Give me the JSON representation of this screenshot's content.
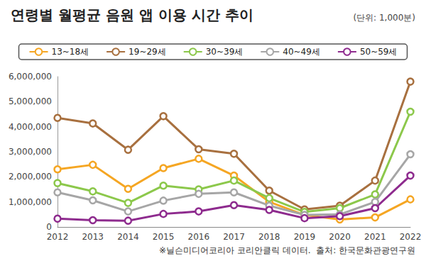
{
  "chart_data": {
    "type": "line",
    "title": "연령별 월평균 음원 앱 이용 시간 추이",
    "subtitle": "(단위: 1,000분)",
    "annotations": [
      "※닐슨미디어코리아 코리안클릭 데이터.  출처: 한국문화관광연구원"
    ],
    "categories": [
      "2012",
      "2013",
      "2014",
      "2015",
      "2016",
      "2017",
      "2018",
      "2019",
      "2020",
      "2021",
      "2022"
    ],
    "series": [
      {
        "name": "13~18세",
        "color": "#f5a623",
        "values": [
          2300000,
          2480000,
          1520000,
          2350000,
          2720000,
          2050000,
          1000000,
          480000,
          300000,
          380000,
          1100000
        ]
      },
      {
        "name": "19~29세",
        "color": "#a8703f",
        "values": [
          4350000,
          4130000,
          3080000,
          4420000,
          3100000,
          2920000,
          1450000,
          700000,
          850000,
          1850000,
          5800000
        ]
      },
      {
        "name": "30~39세",
        "color": "#8cc84b",
        "values": [
          1750000,
          1420000,
          960000,
          1650000,
          1500000,
          1850000,
          1150000,
          600000,
          750000,
          1300000,
          4600000
        ]
      },
      {
        "name": "40~49세",
        "color": "#a6a6a6",
        "values": [
          1380000,
          1060000,
          620000,
          1050000,
          1320000,
          1380000,
          850000,
          480000,
          500000,
          1000000,
          2900000
        ]
      },
      {
        "name": "50~59세",
        "color": "#8e2b8e",
        "values": [
          330000,
          270000,
          250000,
          520000,
          620000,
          870000,
          680000,
          350000,
          430000,
          750000,
          2050000
        ]
      }
    ],
    "ylim": [
      0,
      6000000
    ],
    "yticks": [
      0,
      {
        "value": 1000000,
        "label": "1,000,000"
      },
      {
        "value": 2000000,
        "label": "2,000,000"
      },
      {
        "value": 3000000,
        "label": "3,000,000"
      },
      {
        "value": 4000000,
        "label": "4,000,000"
      },
      {
        "value": 5000000,
        "label": "5,000,000"
      },
      {
        "value": 6000000,
        "label": "6,000,000"
      }
    ],
    "grid": false,
    "legend": "top",
    "marker": "circle"
  }
}
